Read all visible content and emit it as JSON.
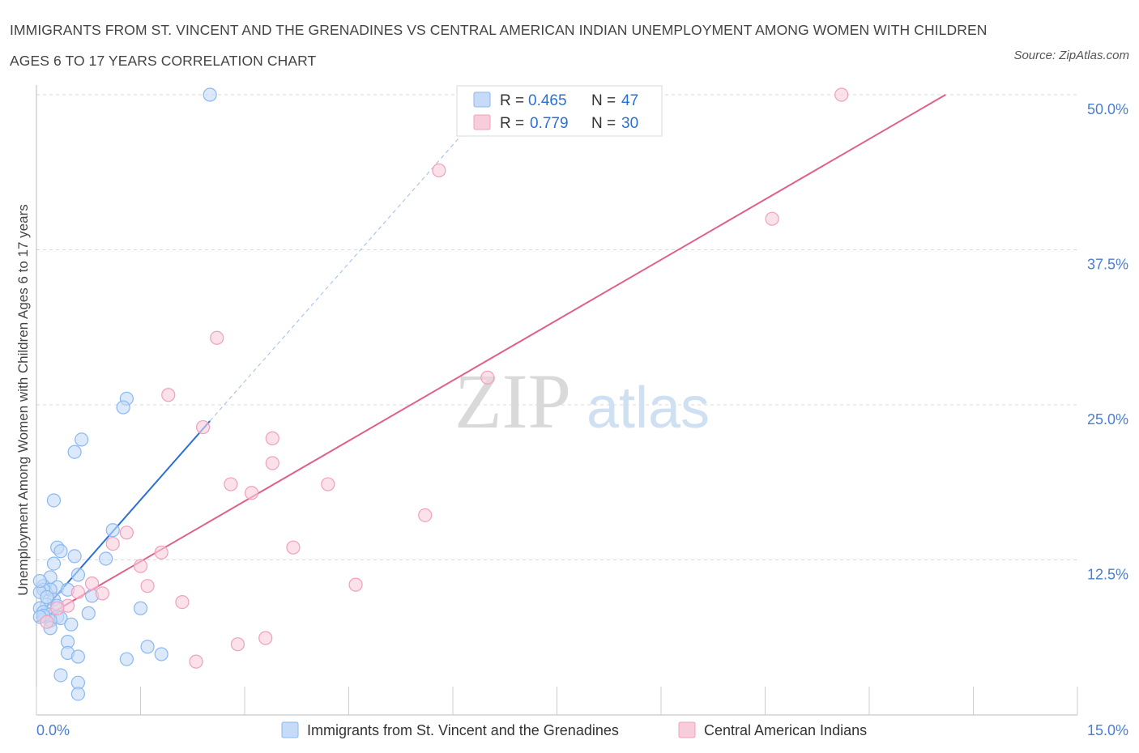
{
  "title": "IMMIGRANTS FROM ST. VINCENT AND THE GRENADINES VS CENTRAL AMERICAN INDIAN UNEMPLOYMENT AMONG WOMEN WITH CHILDREN AGES 6 TO 17 YEARS CORRELATION CHART",
  "source": "Source: ZipAtlas.com",
  "watermark": {
    "zip": "ZIP",
    "atlas": "atlas"
  },
  "colors": {
    "blue": "#8ab8f0",
    "blue_fill": "#c5dbf7",
    "blue_line": "#2a6fd6",
    "pink": "#f0a0bc",
    "pink_fill": "#f8cddb",
    "pink_line": "#e0608c",
    "tick_label": "#4a7fd0",
    "grid": "#d8d8d8"
  },
  "legend_top": {
    "r_label": "R =",
    "n_label": "N =",
    "rows": [
      {
        "r": "0.465",
        "n": "47"
      },
      {
        "r": "0.779",
        "n": "30"
      }
    ]
  },
  "chart_data": {
    "type": "scatter",
    "xlabel": "",
    "ylabel": "Unemployment Among Women with Children Ages 6 to 17 years",
    "xlim": [
      0,
      15
    ],
    "ylim": [
      0,
      50
    ],
    "x_tick_labels": [
      "0.0%",
      "15.0%"
    ],
    "y_ticks": [
      12.5,
      25,
      37.5,
      50
    ],
    "y_tick_labels": [
      "12.5%",
      "25.0%",
      "37.5%",
      "50.0%"
    ],
    "grid": "dashed horizontal",
    "series": [
      {
        "name": "Immigrants from St. Vincent and the Grenadines",
        "color": "blue",
        "r": 0.465,
        "n": 47,
        "trend_solid": [
          [
            0.0,
            7.8
          ],
          [
            2.5,
            23.7
          ]
        ],
        "trend_dashed": [
          [
            2.5,
            23.7
          ],
          [
            6.4,
            48.5
          ]
        ],
        "points": [
          [
            2.5,
            50.0
          ],
          [
            1.3,
            25.5
          ],
          [
            1.25,
            24.8
          ],
          [
            0.65,
            22.2
          ],
          [
            0.55,
            21.2
          ],
          [
            0.25,
            17.3
          ],
          [
            1.1,
            14.9
          ],
          [
            0.3,
            13.5
          ],
          [
            0.35,
            13.2
          ],
          [
            0.55,
            12.8
          ],
          [
            1.0,
            12.6
          ],
          [
            0.25,
            12.2
          ],
          [
            0.6,
            11.3
          ],
          [
            0.2,
            11.1
          ],
          [
            0.3,
            10.3
          ],
          [
            0.1,
            10.4
          ],
          [
            0.45,
            10.1
          ],
          [
            0.2,
            10.1
          ],
          [
            0.1,
            10.1
          ],
          [
            0.05,
            9.9
          ],
          [
            0.8,
            9.6
          ],
          [
            0.25,
            9.3
          ],
          [
            0.15,
            8.9
          ],
          [
            0.3,
            8.8
          ],
          [
            0.05,
            8.6
          ],
          [
            1.5,
            8.6
          ],
          [
            0.1,
            8.3
          ],
          [
            0.2,
            8.1
          ],
          [
            0.3,
            7.9
          ],
          [
            0.75,
            8.2
          ],
          [
            0.35,
            7.8
          ],
          [
            0.2,
            7.6
          ],
          [
            0.5,
            7.3
          ],
          [
            0.2,
            7.0
          ],
          [
            0.45,
            5.9
          ],
          [
            1.6,
            5.5
          ],
          [
            0.45,
            5.0
          ],
          [
            0.6,
            4.7
          ],
          [
            1.8,
            4.9
          ],
          [
            1.3,
            4.5
          ],
          [
            0.35,
            3.2
          ],
          [
            0.6,
            2.6
          ],
          [
            0.6,
            1.7
          ],
          [
            0.1,
            8.0
          ],
          [
            0.05,
            10.8
          ],
          [
            0.15,
            9.5
          ],
          [
            0.05,
            7.9
          ]
        ]
      },
      {
        "name": "Central American Indians",
        "color": "pink",
        "r": 0.779,
        "n": 30,
        "trend": [
          [
            0.0,
            7.5
          ],
          [
            13.1,
            50.0
          ]
        ],
        "points": [
          [
            11.6,
            50.0
          ],
          [
            5.8,
            43.9
          ],
          [
            10.6,
            40.0
          ],
          [
            2.6,
            30.4
          ],
          [
            6.5,
            27.2
          ],
          [
            1.9,
            25.8
          ],
          [
            2.4,
            23.2
          ],
          [
            3.4,
            22.3
          ],
          [
            3.4,
            20.3
          ],
          [
            2.8,
            18.6
          ],
          [
            4.2,
            18.6
          ],
          [
            3.1,
            17.9
          ],
          [
            5.6,
            16.1
          ],
          [
            1.3,
            14.7
          ],
          [
            1.1,
            13.8
          ],
          [
            3.7,
            13.5
          ],
          [
            1.8,
            13.1
          ],
          [
            1.5,
            12.0
          ],
          [
            0.8,
            10.6
          ],
          [
            1.6,
            10.4
          ],
          [
            4.6,
            10.5
          ],
          [
            0.95,
            9.8
          ],
          [
            0.6,
            9.9
          ],
          [
            2.1,
            9.1
          ],
          [
            0.45,
            8.8
          ],
          [
            0.3,
            8.6
          ],
          [
            0.15,
            7.5
          ],
          [
            3.3,
            6.2
          ],
          [
            2.9,
            5.7
          ],
          [
            2.3,
            4.3
          ]
        ]
      }
    ]
  }
}
